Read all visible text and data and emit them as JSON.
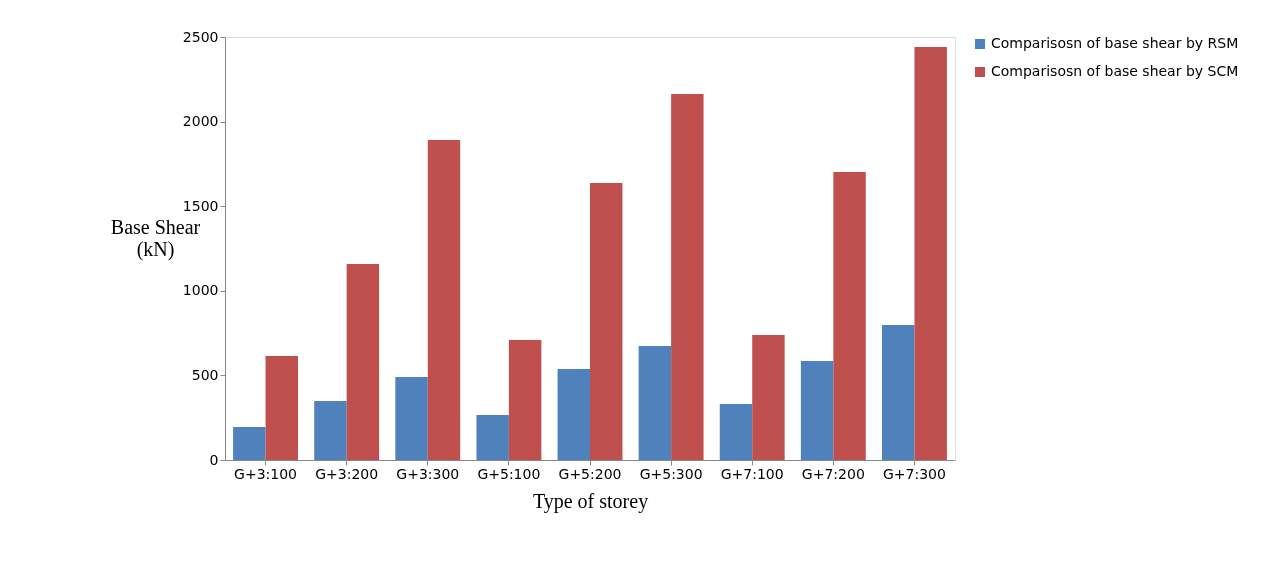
{
  "chart_data": {
    "type": "bar",
    "xlabel": "Type of storey",
    "ylabel": "Base Shear (kN)",
    "categories": [
      "G+3:100",
      "G+3:200",
      "G+3:300",
      "G+5:100",
      "G+5:200",
      "G+5:300",
      "G+7:100",
      "G+7:200",
      "G+7:300"
    ],
    "series": [
      {
        "name": "Comparisosn of base shear by RSM",
        "color": "#4f81bd",
        "values": [
          195,
          349,
          490,
          266,
          538,
          674,
          331,
          585,
          798
        ]
      },
      {
        "name": "Comparisosn of base shear by SCM",
        "color": "#c0504d",
        "values": [
          615,
          1158,
          1891,
          709,
          1637,
          2163,
          739,
          1702,
          2441
        ]
      }
    ],
    "ylim": [
      0,
      2500
    ],
    "yticks": [
      0,
      500,
      1000,
      1500,
      2000,
      2500
    ],
    "grid": false,
    "legend": "right"
  }
}
